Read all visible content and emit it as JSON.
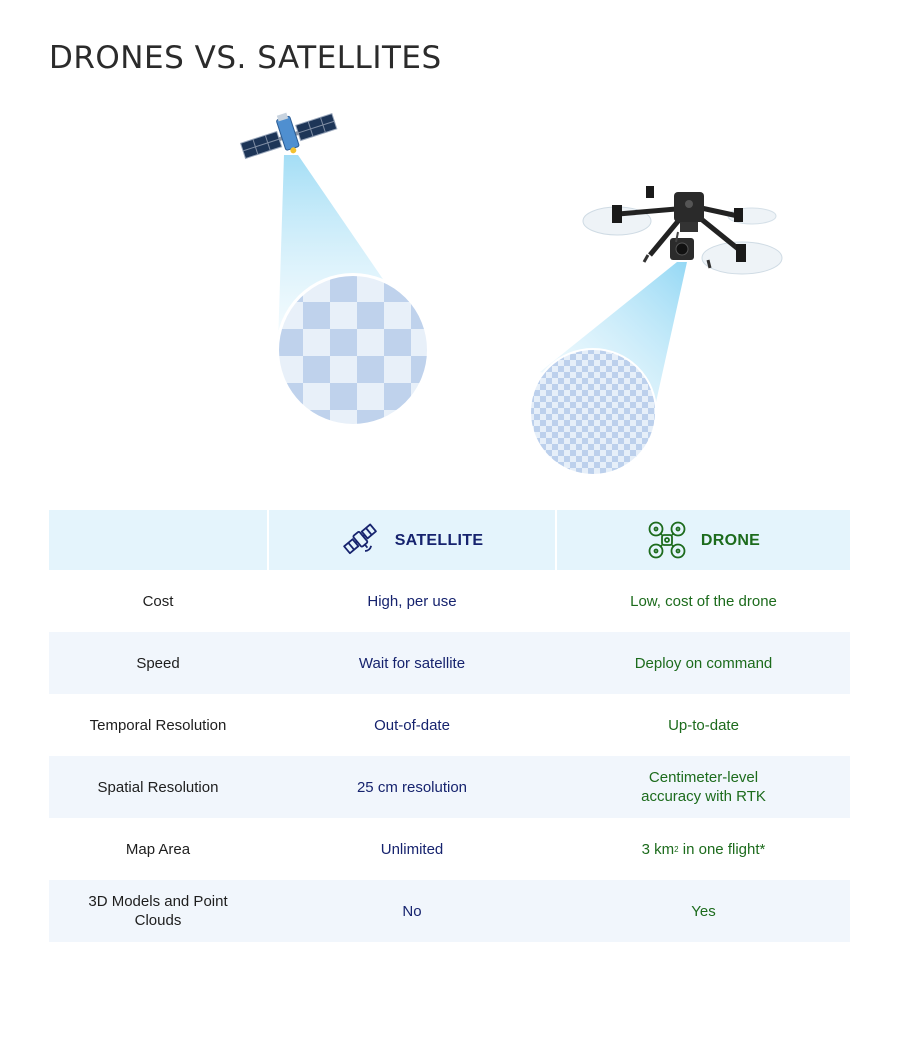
{
  "title": "DRONES VS. SATELLITES",
  "icons": {
    "satellite_illustration": "satellite-icon",
    "drone_illustration": "drone-icon",
    "satellite_header": "satellite-icon",
    "drone_header": "drone-icon"
  },
  "colors": {
    "satellite_text": "#16236e",
    "drone_text": "#1c6b1c",
    "header_bg": "#e4f4fc",
    "row_shade": "#f1f6fc",
    "beam": "#9fdcf5"
  },
  "table": {
    "headers": {
      "satellite": "SATELLITE",
      "drone": "DRONE"
    },
    "rows": [
      {
        "label": "Cost",
        "satellite": "High, per use",
        "drone": "Low, cost of the drone"
      },
      {
        "label": "Speed",
        "satellite": "Wait for satellite",
        "drone": "Deploy on command"
      },
      {
        "label": "Temporal Resolution",
        "satellite": "Out-of-date",
        "drone": "Up-to-date"
      },
      {
        "label": "Spatial Resolution",
        "satellite": "25 cm resolution",
        "drone": "Centimeter-level accuracy with RTK"
      },
      {
        "label": "Map Area",
        "satellite": "Unlimited",
        "drone_prefix": "3 km",
        "drone_sup": "2",
        "drone_suffix": " in one flight*"
      },
      {
        "label": "3D Models and Point Clouds",
        "satellite": "No",
        "drone": "Yes"
      }
    ]
  }
}
